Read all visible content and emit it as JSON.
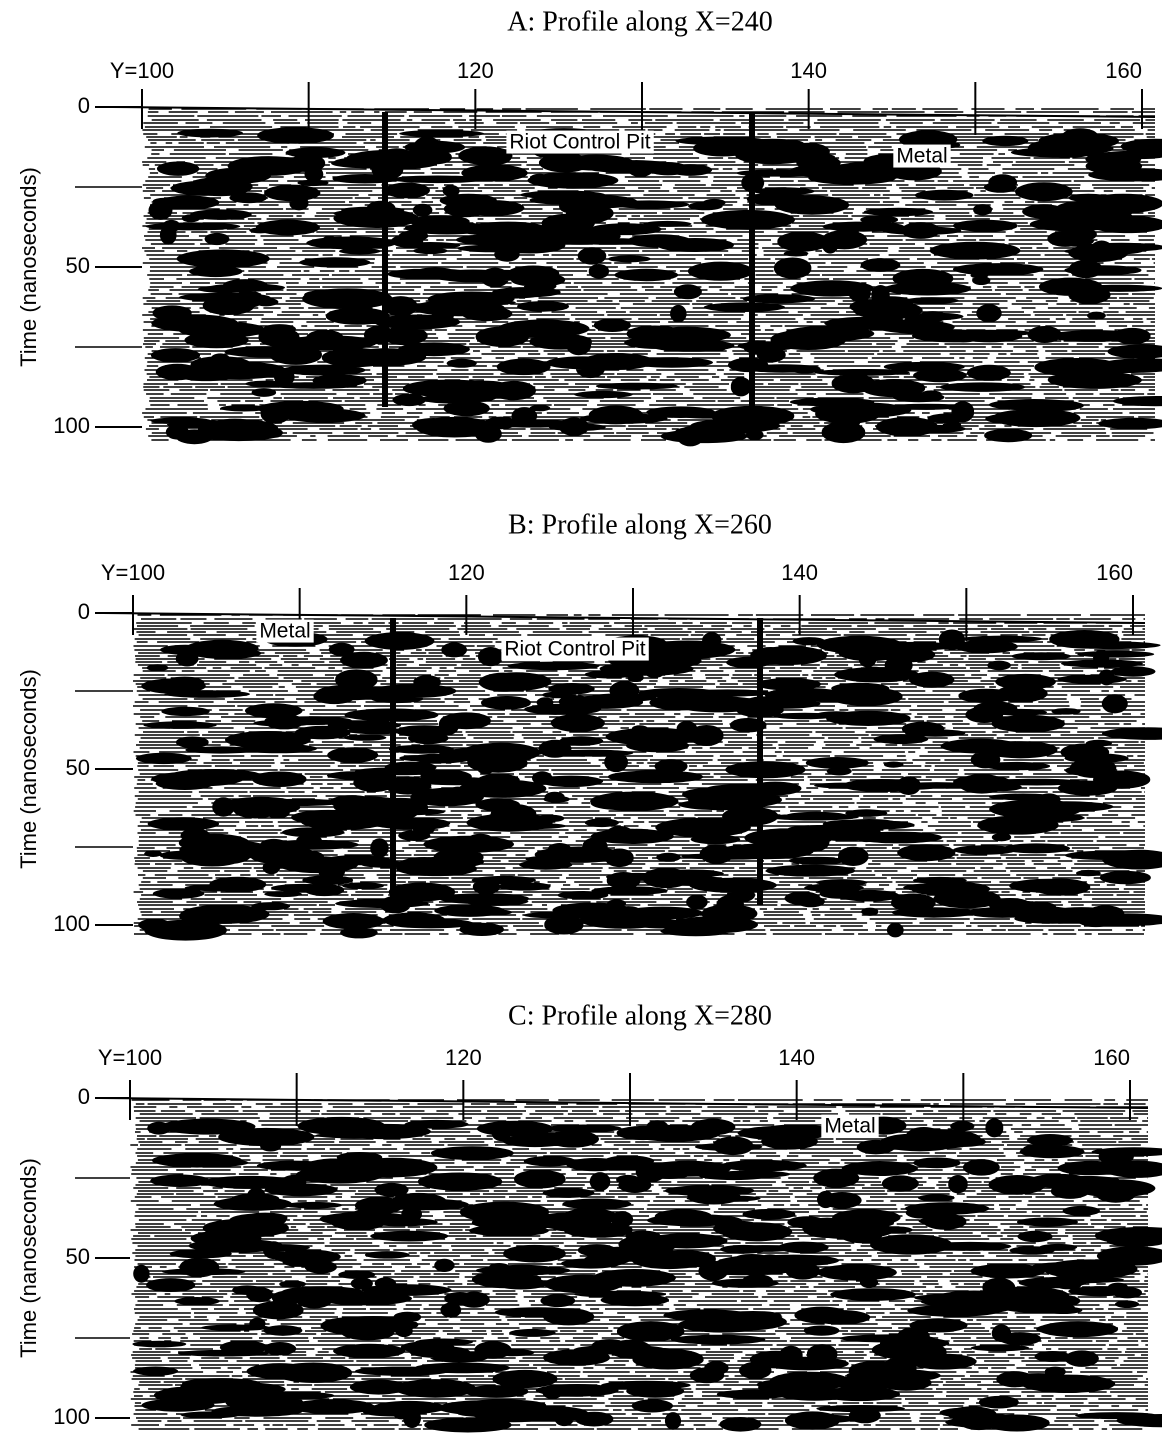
{
  "chart_data": [
    {
      "type": "radargram",
      "title": "A: Profile along X=240",
      "ylabel": "Time  (nanoseconds)",
      "xlim": [
        100,
        160
      ],
      "ylim": [
        0,
        100
      ],
      "xticks": [
        {
          "value": 100,
          "label": "Y=100"
        },
        120,
        140,
        160
      ],
      "xminorticks": [
        110,
        130,
        150
      ],
      "yticks": [
        0,
        50,
        100
      ],
      "yminorticks": [
        25,
        75
      ],
      "annotations": [
        "Riot Control Pit",
        "Metal"
      ]
    },
    {
      "type": "radargram",
      "title": "B: Profile along X=260",
      "ylabel": "Time  (nanoseconds)",
      "xlim": [
        100,
        160
      ],
      "ylim": [
        0,
        100
      ],
      "xticks": [
        {
          "value": 100,
          "label": "Y=100"
        },
        120,
        140,
        160
      ],
      "xminorticks": [
        110,
        130,
        150
      ],
      "yticks": [
        0,
        50,
        100
      ],
      "yminorticks": [
        25,
        75
      ],
      "annotations": [
        "Metal",
        "Riot Control Pit"
      ]
    },
    {
      "type": "radargram",
      "title": "C: Profile along X=280",
      "ylabel": "Time  (nanoseconds)",
      "xlim": [
        100,
        160
      ],
      "ylim": [
        0,
        100
      ],
      "xticks": [
        {
          "value": 100,
          "label": "Y=100"
        },
        120,
        140,
        160
      ],
      "xminorticks": [
        110,
        130,
        150
      ],
      "yticks": [
        0,
        50,
        100
      ],
      "yminorticks": [
        25,
        75
      ],
      "annotations": [
        "Metal"
      ]
    }
  ]
}
